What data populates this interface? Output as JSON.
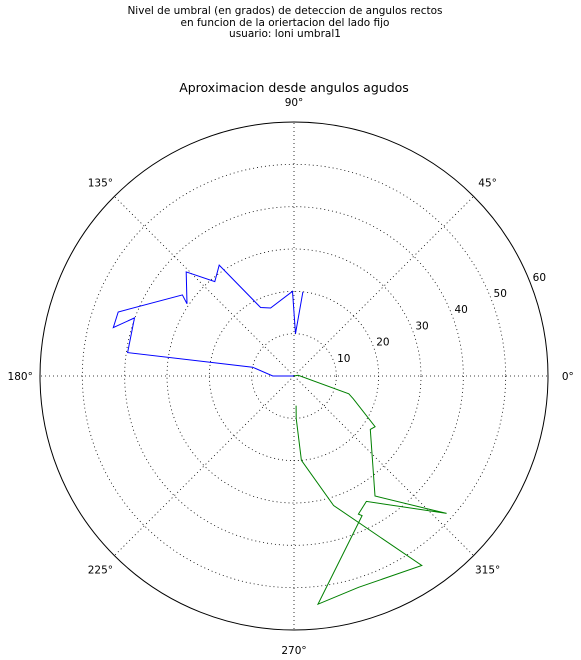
{
  "suptitle": {
    "line1": "Nivel de umbral (en grados) de deteccion de angulos rectos",
    "line2": "en funcion de la oriertacion del lado fijo",
    "line3": "usuario: loni umbral1"
  },
  "chart_data": {
    "type": "polar-line",
    "title": "Aproximacion desde angulos agudos",
    "theta_unit": "degrees",
    "r_max": 60,
    "angle_ticks": [
      {
        "deg": 0,
        "label": "0°"
      },
      {
        "deg": 45,
        "label": "45°"
      },
      {
        "deg": 90,
        "label": "90°"
      },
      {
        "deg": 135,
        "label": "135°"
      },
      {
        "deg": 180,
        "label": "180°"
      },
      {
        "deg": 225,
        "label": "225°"
      },
      {
        "deg": 270,
        "label": "270°"
      },
      {
        "deg": 315,
        "label": "315°"
      }
    ],
    "radial_ticks": [
      {
        "r": 10,
        "label": "10"
      },
      {
        "r": 20,
        "label": "20"
      },
      {
        "r": 30,
        "label": "30"
      },
      {
        "r": 40,
        "label": "40"
      },
      {
        "r": 50,
        "label": "50"
      },
      {
        "r": 60,
        "label": "60"
      }
    ],
    "grid": true,
    "series": [
      {
        "color": "#0000ff",
        "points": [
          {
            "theta": 84,
            "r": 20.0
          },
          {
            "theta": 88,
            "r": 10.0
          },
          {
            "theta": 91,
            "r": 20.0
          },
          {
            "theta": 109,
            "r": 17.0
          },
          {
            "theta": 116,
            "r": 18.0
          },
          {
            "theta": 124,
            "r": 31.6
          },
          {
            "theta": 130,
            "r": 29.1
          },
          {
            "theta": 136,
            "r": 35.4
          },
          {
            "theta": 146,
            "r": 30.5
          },
          {
            "theta": 144,
            "r": 32.6
          },
          {
            "theta": 160,
            "r": 44.2
          },
          {
            "theta": 165,
            "r": 44.2
          },
          {
            "theta": 160,
            "r": 40.1
          },
          {
            "theta": 172,
            "r": 39.7
          },
          {
            "theta": 168,
            "r": 10.0
          },
          {
            "theta": 180,
            "r": 5.0
          },
          {
            "theta": 0,
            "r": 0
          }
        ]
      },
      {
        "color": "#008000",
        "points": [
          {
            "theta": 0,
            "r": 0
          },
          {
            "theta": 10,
            "r": 1.0
          },
          {
            "theta": 342,
            "r": 13.6
          },
          {
            "theta": 339,
            "r": 15.0
          },
          {
            "theta": 328,
            "r": 22.6
          },
          {
            "theta": 325,
            "r": 22.0
          },
          {
            "theta": 304,
            "r": 34.2
          },
          {
            "theta": 315,
            "r": 44.3
          },
          {
            "theta": 318,
            "r": 48.5
          },
          {
            "theta": 300,
            "r": 34.2
          },
          {
            "theta": 295,
            "r": 36.0
          },
          {
            "theta": 296,
            "r": 36.7
          },
          {
            "theta": 276,
            "r": 54.2
          },
          {
            "theta": 287,
            "r": 52.2
          },
          {
            "theta": 304,
            "r": 54.0
          },
          {
            "theta": 287,
            "r": 32.0
          },
          {
            "theta": 275,
            "r": 20.0
          },
          {
            "theta": 273,
            "r": 10.0
          },
          {
            "theta": 274,
            "r": 7.0
          }
        ]
      }
    ]
  }
}
